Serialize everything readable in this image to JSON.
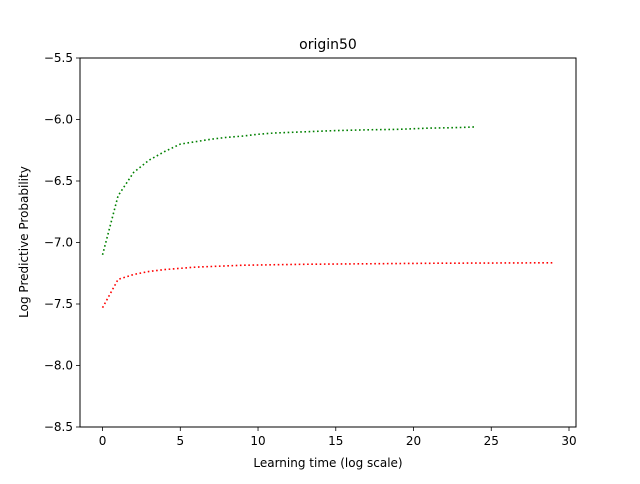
{
  "chart_data": {
    "type": "line",
    "title": "origin50",
    "xlabel": "Learning time (log scale)",
    "ylabel": "Log Predictive Probability",
    "xlim": [
      -1.45,
      30.45
    ],
    "ylim": [
      -8.5,
      -5.5
    ],
    "xticks": [
      0,
      5,
      10,
      15,
      20,
      25,
      30
    ],
    "xtick_labels": [
      "0",
      "5",
      "10",
      "15",
      "20",
      "25",
      "30"
    ],
    "yticks": [
      -5.5,
      -6.0,
      -6.5,
      -7.0,
      -7.5,
      -8.0,
      -8.5
    ],
    "ytick_labels": [
      "−5.5",
      "−6.0",
      "−6.5",
      "−7.0",
      "−7.5",
      "−8.0",
      "−8.5"
    ],
    "grid": false,
    "series": [
      {
        "color": "#008000",
        "style": "dotted",
        "x": [
          0,
          1,
          2,
          3,
          4,
          5,
          6,
          7,
          8,
          9,
          10,
          11,
          12,
          13,
          14,
          15,
          16,
          17,
          18,
          19,
          20,
          21,
          22,
          23,
          24
        ],
        "y": [
          -7.1,
          -6.62,
          -6.43,
          -6.33,
          -6.26,
          -6.2,
          -6.18,
          -6.16,
          -6.145,
          -6.135,
          -6.12,
          -6.11,
          -6.105,
          -6.1,
          -6.095,
          -6.09,
          -6.087,
          -6.084,
          -6.082,
          -6.08,
          -6.075,
          -6.07,
          -6.068,
          -6.065,
          -6.06
        ]
      },
      {
        "color": "#ff0000",
        "style": "dotted",
        "x": [
          0,
          1,
          2,
          3,
          4,
          5,
          6,
          7,
          8,
          9,
          10,
          11,
          12,
          13,
          14,
          15,
          16,
          17,
          18,
          19,
          20,
          21,
          22,
          23,
          24,
          25,
          26,
          27,
          28,
          29
        ],
        "y": [
          -7.53,
          -7.3,
          -7.26,
          -7.235,
          -7.22,
          -7.21,
          -7.2,
          -7.195,
          -7.19,
          -7.185,
          -7.183,
          -7.181,
          -7.179,
          -7.177,
          -7.176,
          -7.175,
          -7.174,
          -7.173,
          -7.172,
          -7.171,
          -7.17,
          -7.169,
          -7.168,
          -7.168,
          -7.167,
          -7.167,
          -7.166,
          -7.166,
          -7.165,
          -7.165
        ]
      }
    ]
  }
}
